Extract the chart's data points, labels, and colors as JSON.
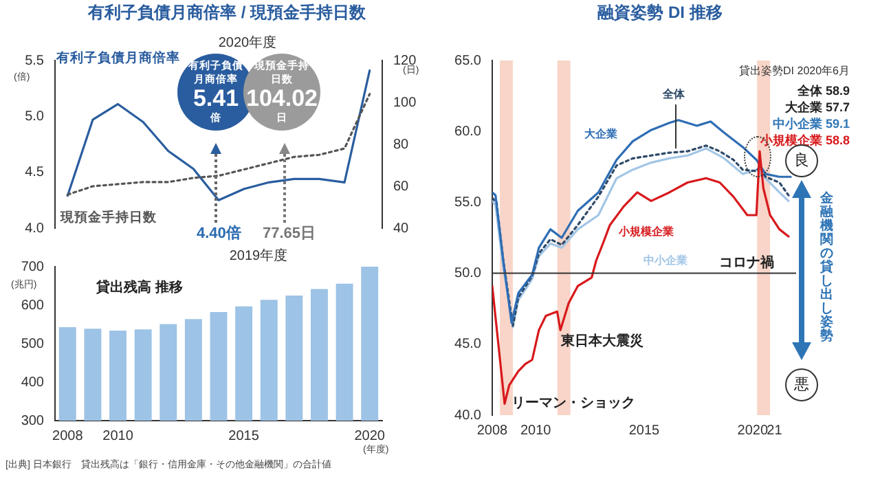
{
  "chart_data": [
    {
      "type": "line",
      "title": "有利子負債月商倍率 / 現預金手持日数",
      "ylabel": "(倍)",
      "y2label": "(日)",
      "categories": [
        "2008",
        null,
        "2010",
        null,
        null,
        null,
        null,
        "2015",
        null,
        null,
        null,
        null,
        "2020"
      ],
      "series": [
        {
          "name": "有利子負債月商倍率",
          "color": "#2a5d9f",
          "values": [
            4.29,
            4.97,
            5.11,
            4.95,
            4.69,
            4.53,
            4.25,
            4.35,
            4.41,
            4.44,
            4.44,
            4.41,
            5.41
          ]
        },
        {
          "name": "現預金手持日数",
          "color": "#555555",
          "line_style": "dotted",
          "axis": "y2",
          "values": [
            56,
            60,
            61,
            62,
            62,
            64,
            65,
            68,
            71,
            74,
            75,
            78,
            104
          ]
        }
      ],
      "ylim": [
        4,
        5.5
      ],
      "yticks": [
        {
          "value": 4,
          "label": "4.0"
        },
        {
          "value": 4.5,
          "label": "4.5"
        },
        {
          "value": 5,
          "label": "5.0"
        },
        {
          "value": 5.5,
          "label": "5.5"
        }
      ],
      "y2lim": [
        40,
        120
      ],
      "y2ticks": [
        40,
        60,
        80,
        100,
        120
      ],
      "tick_labels": "y",
      "annotations": [
        "2020年度",
        "有利子負債月商倍率\n5.41\n倍",
        "現預金手持日数\n104.02\n日",
        "4.40倍",
        {
          "text": "77.65日"
        }
      ]
    },
    {
      "type": "bar",
      "categories": [
        "2008",
        null,
        "2010",
        null,
        null,
        null,
        null,
        "2015",
        null,
        null,
        null,
        null,
        "2020"
      ],
      "values": [
        543,
        539,
        534,
        537,
        551,
        564,
        582,
        597,
        614,
        625,
        642,
        656,
        700
      ],
      "color": "#9dc3e6",
      "ylim": [
        300,
        700
      ],
      "yticks": [
        300,
        400,
        500,
        600,
        700
      ],
      "ylabel": "(兆円)",
      "xlabel": "(年度)",
      "annotations": [
        "2019年度",
        "貸出残高 推移",
        "[出典] 日本銀行　貸出残高は「銀行・信用金庫・その他金融機関」の合計値"
      ]
    },
    {
      "type": "line",
      "title": "融資姿勢 DI  推移",
      "series": [
        {
          "name": "中小企業",
          "color": "#a3c6e6",
          "x": [
            2008.0,
            2008.15,
            2008.5,
            2008.95,
            2009.2,
            2009.84,
            2010.15,
            2010.68,
            2011.2,
            2011.94,
            2012.89,
            2013.73,
            2014.47,
            2015.32,
            2016.16,
            2017.0,
            2017.85,
            2018.69,
            2019.54,
            2020.17,
            2020.59,
            2021.23,
            2021.65
          ],
          "values": [
            55.1,
            54.8,
            50.5,
            46.2,
            48.1,
            49.6,
            51.2,
            52.1,
            51.8,
            53.1,
            54.1,
            56.7,
            57.3,
            57.8,
            58.1,
            58.3,
            58.8,
            58.1,
            57.0,
            57.3,
            56.7,
            55.7,
            55.1
          ]
        },
        {
          "name": "全体",
          "color": "#2f4a68",
          "line_style": "dotted",
          "x": [
            2008.0,
            2008.2,
            2008.5,
            2008.95,
            2009.2,
            2009.84,
            2010.15,
            2010.68,
            2011.2,
            2011.94,
            2012.89,
            2013.73,
            2014.47,
            2015.32,
            2016.16,
            2017.0,
            2017.85,
            2018.48,
            2019.11,
            2019.54,
            2020.17,
            2020.32,
            2020.59,
            2021.23,
            2021.65
          ],
          "values": [
            55.3,
            55.0,
            51.0,
            46.3,
            48.3,
            49.8,
            51.4,
            52.4,
            52.0,
            53.4,
            55.4,
            57.6,
            58.1,
            58.3,
            58.5,
            58.6,
            59.0,
            58.6,
            58.0,
            57.3,
            57.2,
            57.5,
            56.8,
            56.4,
            55.5
          ]
        },
        {
          "name": "大企業",
          "color": "#2e6db4",
          "x": [
            2008.0,
            2008.15,
            2008.5,
            2008.89,
            2009.2,
            2009.84,
            2010.15,
            2010.68,
            2011.2,
            2011.94,
            2012.89,
            2013.73,
            2014.47,
            2015.32,
            2016.16,
            2016.58,
            2017.43,
            2018.06,
            2018.69,
            2019.54,
            2020.17,
            2020.59,
            2021.23,
            2021.75
          ],
          "values": [
            55.7,
            55.5,
            51.0,
            46.5,
            48.6,
            49.9,
            51.8,
            53.1,
            52.5,
            54.4,
            55.7,
            58.0,
            59.3,
            60.1,
            60.6,
            60.8,
            60.4,
            60.7,
            59.9,
            58.9,
            58.0,
            57.0,
            56.8,
            56.8
          ]
        },
        {
          "name": "小規模企業",
          "color": "#d7191c",
          "x": [
            2008.0,
            2008.57,
            2008.78,
            2009.2,
            2009.52,
            2009.84,
            2010.15,
            2010.47,
            2010.99,
            2011.14,
            2011.52,
            2011.94,
            2012.58,
            2012.79,
            2013.1,
            2013.42,
            2014.05,
            2014.68,
            2015.32,
            2016.16,
            2017.0,
            2017.85,
            2018.48,
            2019.11,
            2019.75,
            2020.17,
            2020.32,
            2020.49,
            2020.8,
            2021.23,
            2021.65
          ],
          "values": [
            49.1,
            40.8,
            42.1,
            43.1,
            43.6,
            43.9,
            46.0,
            47.0,
            47.3,
            46.0,
            47.9,
            49.1,
            49.7,
            50.9,
            52.1,
            53.4,
            54.7,
            55.7,
            55.1,
            55.7,
            56.4,
            56.7,
            56.4,
            55.4,
            54.1,
            54.1,
            58.6,
            56.0,
            54.1,
            53.1,
            52.6
          ]
        }
      ],
      "xlim": [
        2008,
        2022
      ],
      "xticks": [
        2008,
        2010,
        2015,
        2020,
        {
          "value": 2021,
          "label": "21"
        }
      ],
      "ylim": [
        40,
        65
      ],
      "yticks": [
        {
          "value": 40,
          "label": "40.0"
        },
        {
          "value": 45,
          "label": "45.0"
        },
        {
          "value": 50,
          "label": "50.0"
        },
        {
          "value": 55,
          "label": "55.0"
        },
        {
          "value": 60,
          "label": "60.0"
        },
        {
          "value": 65,
          "label": "65.0"
        }
      ],
      "bands": [
        {
          "axis": "x",
          "from": 2008.35,
          "to": 2008.95,
          "label": "リーマン・ショック",
          "color": "#f8d5c8"
        },
        {
          "axis": "x",
          "from": 2011.0,
          "to": 2011.6,
          "label": "東日本大震災",
          "color": "#f8d5c8"
        },
        {
          "axis": "x",
          "from": 2020.2,
          "to": 2020.8,
          "label": "コロナ禍",
          "color": "#f8d5c8"
        }
      ],
      "ref_lines": [
        {
          "axis": "y",
          "value": 50,
          "color": "#333333"
        }
      ],
      "annotations": [
        "貸出姿勢DI 2020年6月",
        "全体 58.9",
        "大企業 57.7",
        "中小企業 59.1",
        "小規模企業 58.8",
        "良",
        "悪",
        "金融機関の貸し出し姿勢"
      ]
    }
  ]
}
